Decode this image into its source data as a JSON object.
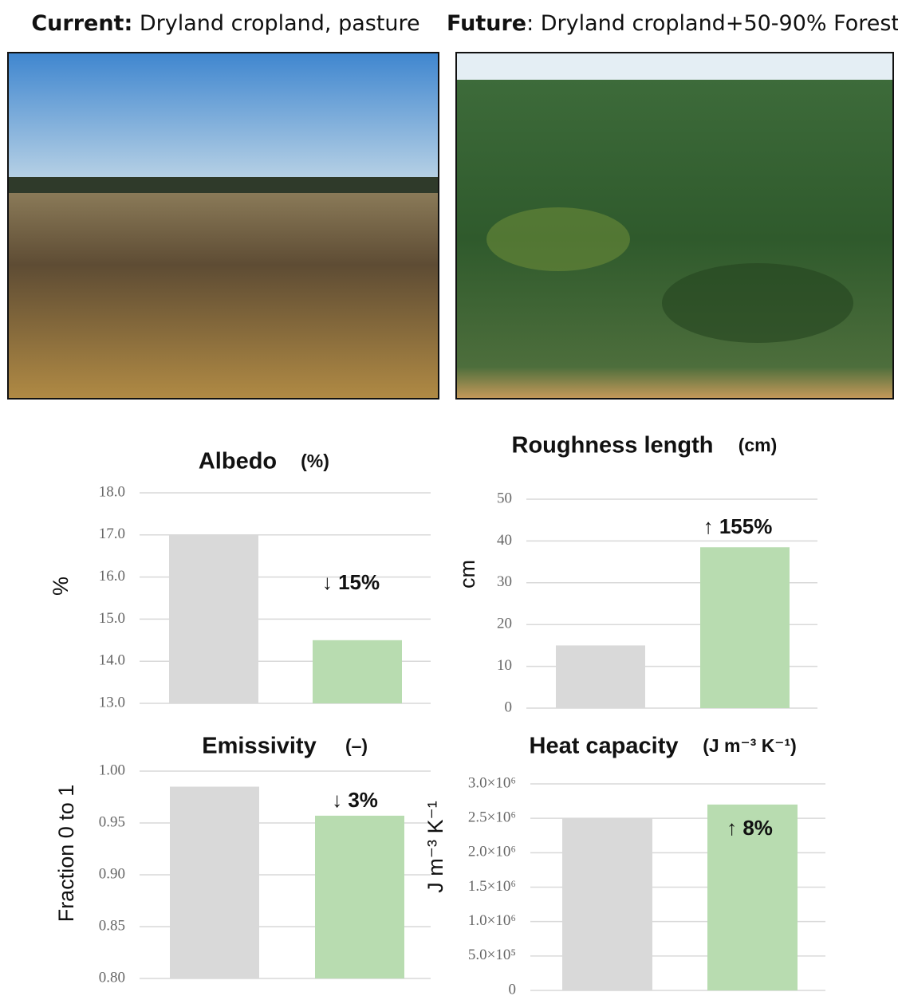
{
  "captions": [
    {
      "label": "Current:",
      "text": " Dryland cropland, pasture"
    },
    {
      "label": "Future",
      "text": ": Dryland cropland+50-90% Forest"
    }
  ],
  "chart_data": [
    {
      "type": "bar",
      "title": "Albedo",
      "unit": "(%)",
      "y_label": "%",
      "categories": [
        null,
        null
      ],
      "values": [
        17.0,
        14.5
      ],
      "colors": [
        "#d9d9d9",
        "#b8dcb0"
      ],
      "ylim": [
        13,
        18
      ],
      "yticks": [
        {
          "value": 13,
          "label": "13.0"
        },
        {
          "value": 14,
          "label": "14.0"
        },
        {
          "value": 15,
          "label": "15.0"
        },
        {
          "value": 16,
          "label": "16.0"
        },
        {
          "value": 17,
          "label": "17.0"
        },
        {
          "value": 18,
          "label": "18.0"
        }
      ],
      "annotation": "↓ 15%",
      "grid": true
    },
    {
      "type": "bar",
      "title": "Roughness length",
      "unit": "(cm)",
      "y_label": "cm",
      "categories": [
        null,
        null
      ],
      "values": [
        15,
        38.5
      ],
      "colors": [
        "#d9d9d9",
        "#b8dcb0"
      ],
      "ylim": [
        0,
        50
      ],
      "yticks": [
        0,
        10,
        20,
        30,
        40,
        50
      ],
      "annotation": "↑ 155%",
      "grid": true
    },
    {
      "type": "bar",
      "title": "Emissivity",
      "unit": "(–)",
      "y_label": "Fraction 0 to 1",
      "categories": [
        null,
        null
      ],
      "values": [
        0.985,
        0.957
      ],
      "colors": [
        "#d9d9d9",
        "#b8dcb0"
      ],
      "ylim": [
        0.8,
        1.0
      ],
      "yticks": [
        {
          "value": 0.8,
          "label": "0.80"
        },
        {
          "value": 0.85,
          "label": "0.85"
        },
        {
          "value": 0.9,
          "label": "0.90"
        },
        {
          "value": 0.95,
          "label": "0.95"
        },
        {
          "value": 1.0,
          "label": "1.00"
        }
      ],
      "annotation": "↓ 3%",
      "grid": true
    },
    {
      "type": "bar",
      "title": "Heat capacity",
      "unit": "(J m⁻³ K⁻¹)",
      "y_label": "J m⁻³ K⁻¹",
      "categories": [
        null,
        null
      ],
      "values": [
        2500000,
        2700000
      ],
      "colors": [
        "#d9d9d9",
        "#b8dcb0"
      ],
      "ylim": [
        0,
        3000000
      ],
      "yticks": [
        0,
        {
          "value": 500000,
          "label": "5.0×10⁵"
        },
        {
          "value": 1000000,
          "label": "1.0×10⁶"
        },
        {
          "value": 1500000,
          "label": "1.5×10⁶"
        },
        {
          "value": 2000000,
          "label": "2.0×10⁶"
        },
        {
          "value": 2500000,
          "label": "2.5×10⁶"
        },
        {
          "value": 3000000,
          "label": "3.0×10⁶"
        }
      ],
      "annotation": "↑ 8%",
      "grid": true
    }
  ]
}
